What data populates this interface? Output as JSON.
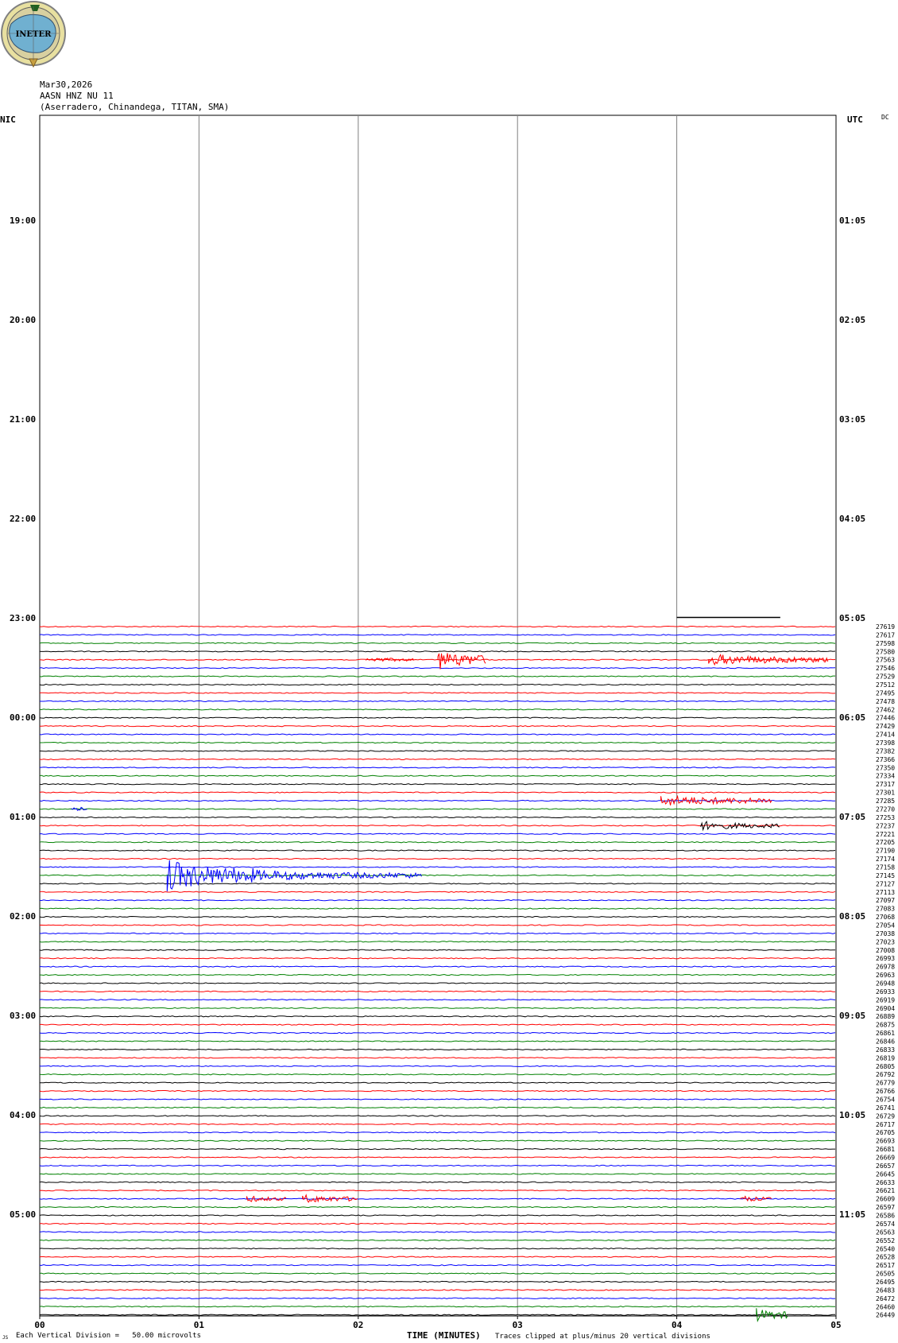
{
  "logo": {
    "text": "INETER",
    "icon": "ineter-nicaragua-map-logo"
  },
  "header": {
    "date": "Mar30,2026",
    "station": "AASN HNZ NU 11",
    "location": "(Aserradero, Chinandega, TITAN, SMA)"
  },
  "left_tz": "NIC",
  "right_tz": "UTC",
  "dc_label": "DC",
  "footer": {
    "small_mark": "JS",
    "division": "Each Vertical Division =   50.00 microvolts",
    "xlabel": "TIME (MINUTES)",
    "clip_note": "Traces clipped at plus/minus 20 vertical divisions"
  },
  "colors": {
    "black": "#000000",
    "red": "#ff0000",
    "blue": "#0000ff",
    "green": "#008000",
    "grid": "#808080"
  },
  "chart_data": {
    "type": "line",
    "xlabel": "TIME (MINUTES)",
    "xlim": [
      0,
      5
    ],
    "x_ticks": [
      "00",
      "01",
      "02",
      "03",
      "04",
      "05"
    ],
    "left_hour_labels": [
      "19:00",
      "20:00",
      "21:00",
      "22:00",
      "23:00",
      "00:00",
      "01:00",
      "02:00",
      "03:00",
      "04:00",
      "05:00"
    ],
    "right_hour_labels": [
      "01:05",
      "02:05",
      "03:05",
      "04:05",
      "05:05",
      "06:05",
      "07:05",
      "08:05",
      "09:05",
      "10:05",
      "11:05"
    ],
    "first_trace_start_minute": 4.0,
    "first_trace_end_minute": 4.65,
    "trace_ids": [
      27619,
      27617,
      27598,
      27580,
      27563,
      27546,
      27529,
      27512,
      27495,
      27478,
      27462,
      27446,
      27429,
      27414,
      27398,
      27382,
      27366,
      27350,
      27334,
      27317,
      27301,
      27285,
      27270,
      27253,
      27237,
      27221,
      27205,
      27190,
      27174,
      27158,
      27145,
      27127,
      27113,
      27097,
      27083,
      27068,
      27054,
      27038,
      27023,
      27008,
      26993,
      26978,
      26963,
      26948,
      26933,
      26919,
      26904,
      26889,
      26875,
      26861,
      26846,
      26833,
      26819,
      26805,
      26792,
      26779,
      26766,
      26754,
      26741,
      26729,
      26717,
      26705,
      26693,
      26681,
      26669,
      26657,
      26645,
      26633,
      26621,
      26609,
      26597,
      26586,
      26574,
      26563,
      26552,
      26540,
      26528,
      26517,
      26505,
      26495,
      26483,
      26472,
      26460,
      26449
    ],
    "trace_color_cycle": [
      "black",
      "red",
      "blue",
      "green"
    ],
    "events": [
      {
        "trace": 4,
        "start": 2.05,
        "end": 2.35,
        "amp": 1.2,
        "color": "red"
      },
      {
        "trace": 4,
        "start": 2.5,
        "end": 2.8,
        "amp": 4.5,
        "color": "red"
      },
      {
        "trace": 4,
        "start": 4.2,
        "end": 4.95,
        "amp": 2.5,
        "color": "red"
      },
      {
        "trace": 21,
        "start": 3.9,
        "end": 4.6,
        "amp": 2.5,
        "color": "red"
      },
      {
        "trace": 22,
        "start": 0.2,
        "end": 0.3,
        "amp": 1.5,
        "color": "blue"
      },
      {
        "trace": 24,
        "start": 4.15,
        "end": 4.65,
        "amp": 2.0,
        "color": "black"
      },
      {
        "trace": 30,
        "start": 0.8,
        "end": 1.35,
        "amp": 7.0,
        "color": "blue"
      },
      {
        "trace": 30,
        "start": 1.35,
        "end": 2.4,
        "amp": 2.5,
        "color": "blue"
      },
      {
        "trace": 69,
        "start": 1.3,
        "end": 1.55,
        "amp": 1.5,
        "color": "red"
      },
      {
        "trace": 69,
        "start": 1.65,
        "end": 2.0,
        "amp": 2.0,
        "color": "red"
      },
      {
        "trace": 69,
        "start": 4.4,
        "end": 4.6,
        "amp": 1.5,
        "color": "red"
      },
      {
        "trace": 83,
        "start": 4.5,
        "end": 4.7,
        "amp": 3.0,
        "color": "green"
      }
    ]
  }
}
